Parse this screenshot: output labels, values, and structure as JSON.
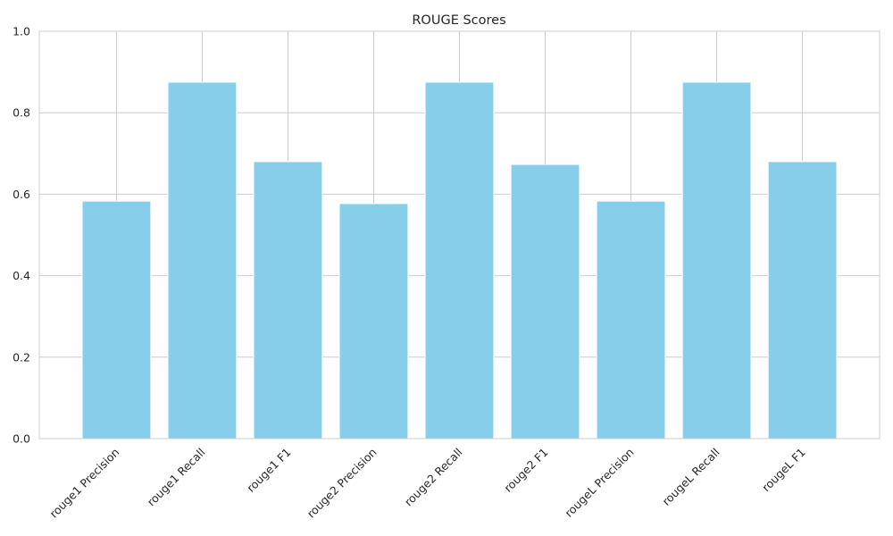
{
  "chart_data": {
    "type": "bar",
    "title": "ROUGE Scores",
    "xlabel": "",
    "ylabel": "",
    "categories": [
      "rouge1 Precision",
      "rouge1 Recall",
      "rouge1 F1",
      "rouge2 Precision",
      "rouge2 Recall",
      "rouge2 F1",
      "rougeL Precision",
      "rougeL Recall",
      "rougeL F1"
    ],
    "values": [
      0.583,
      0.875,
      0.68,
      0.577,
      0.875,
      0.673,
      0.583,
      0.875,
      0.68
    ],
    "ylim": [
      0,
      1.0
    ],
    "yticks": [
      "0.0",
      "0.2",
      "0.4",
      "0.6",
      "0.8",
      "1.0"
    ],
    "grid": true,
    "bar_color": "#87CEEB"
  }
}
